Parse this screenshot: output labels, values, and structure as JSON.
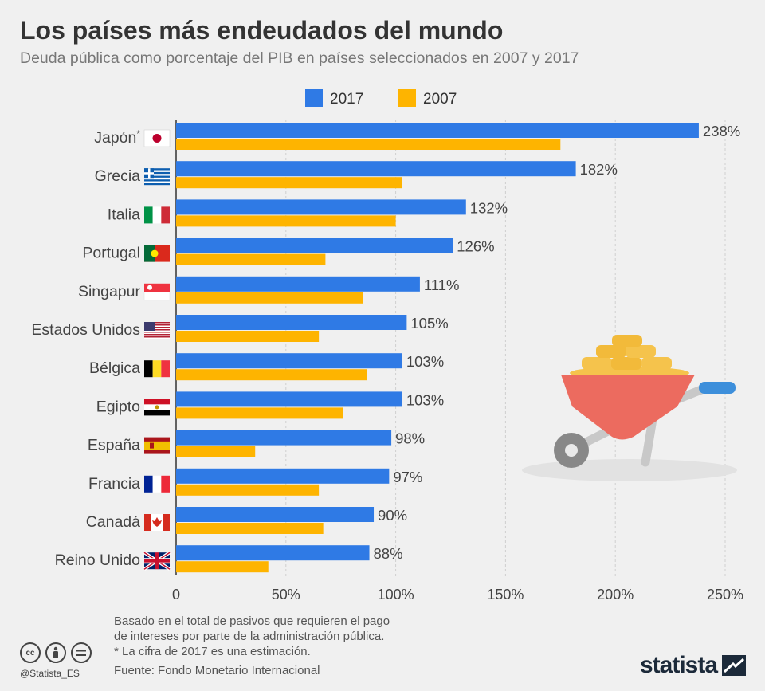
{
  "title": "Los países más endeudados del mundo",
  "subtitle": "Deuda pública como porcentaje del PIB en países seleccionados en 2007 y 2017",
  "chart_data": {
    "type": "bar",
    "orientation": "horizontal",
    "categories": [
      "Japón",
      "Grecia",
      "Italia",
      "Portugal",
      "Singapur",
      "Estados Unidos",
      "Bélgica",
      "Egipto",
      "España",
      "Francia",
      "Canadá",
      "Reino Unido"
    ],
    "category_note_marker": "*",
    "series": [
      {
        "name": "2017",
        "color": "#2f7ae5",
        "values": [
          238,
          182,
          132,
          126,
          111,
          105,
          103,
          103,
          98,
          97,
          90,
          88
        ]
      },
      {
        "name": "2007",
        "color": "#feb400",
        "values": [
          175,
          103,
          100,
          68,
          85,
          65,
          87,
          76,
          36,
          65,
          67,
          42
        ]
      }
    ],
    "data_labels": [
      "238%",
      "182%",
      "132%",
      "126%",
      "111%",
      "105%",
      "103%",
      "103%",
      "98%",
      "97%",
      "90%",
      "88%"
    ],
    "xlim": [
      0,
      250
    ],
    "xticks": [
      0,
      50,
      100,
      150,
      200,
      250
    ],
    "xtick_labels": [
      "0",
      "50%",
      "100%",
      "150%",
      "200%",
      "250%"
    ],
    "legend_position": "top-center",
    "grid": "vertical dashed"
  },
  "footnote": [
    "Basado en el total de pasivos que requieren el pago",
    "de intereses por parte de la administración pública.",
    "* La cifra de 2017 es una estimación."
  ],
  "source": "Fuente: Fondo Monetario Internacional",
  "handle": "@Statista_ES",
  "brand": "statista",
  "license_icons": [
    "cc-icon",
    "by-icon",
    "nd-icon"
  ]
}
